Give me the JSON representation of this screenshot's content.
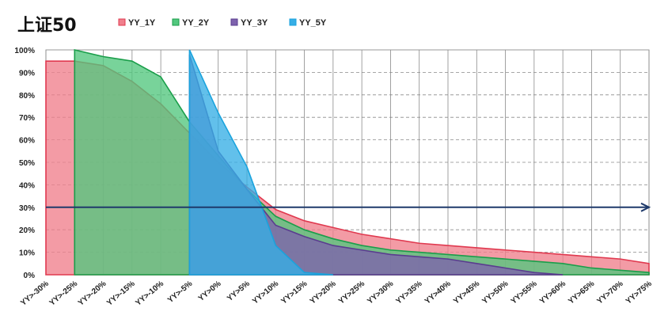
{
  "chart_data": {
    "type": "area",
    "title": "上证50",
    "categories": [
      "YY>-30%",
      "YY>-25%",
      "YY>-20%",
      "YY>-15%",
      "YY>-10%",
      "YY>-5%",
      "YY>0%",
      "YY>5%",
      "YY>10%",
      "YY>15%",
      "YY>20%",
      "YY>25%",
      "YY>30%",
      "YY>35%",
      "YY>40%",
      "YY>45%",
      "YY>50%",
      "YY>55%",
      "YY>60%",
      "YY>65%",
      "YY>70%",
      "YY>75%"
    ],
    "series": [
      {
        "name": "YY_1Y",
        "color": "#f07f8c",
        "stroke": "#e0394f",
        "values": [
          95,
          95,
          93,
          86,
          76,
          63,
          50,
          39,
          29,
          24,
          21,
          18,
          16,
          14,
          13,
          12,
          11,
          10,
          9,
          8,
          7,
          5
        ]
      },
      {
        "name": "YY_2Y",
        "color": "#52c77e",
        "stroke": "#1a9e4a",
        "values": [
          null,
          100,
          97,
          95,
          88,
          68,
          53,
          38,
          26,
          20,
          16,
          13,
          11,
          10,
          9,
          8,
          7,
          6,
          5,
          3,
          2,
          1
        ]
      },
      {
        "name": "YY_3Y",
        "color": "#7e62ad",
        "stroke": "#5a3c8f",
        "values": [
          null,
          null,
          null,
          null,
          null,
          98,
          55,
          38,
          22,
          17,
          13,
          11,
          9,
          8,
          7,
          5,
          3,
          1,
          0,
          null,
          null,
          null
        ]
      },
      {
        "name": "YY_5Y",
        "color": "#36aee6",
        "stroke": "#1aa3dd",
        "values": [
          null,
          null,
          null,
          null,
          null,
          100,
          72,
          48,
          13,
          1,
          0,
          null,
          null,
          null,
          null,
          null,
          null,
          null,
          null,
          null,
          null,
          null
        ]
      }
    ],
    "ylim": [
      0,
      100
    ],
    "yticks": [
      "0%",
      "10%",
      "20%",
      "30%",
      "40%",
      "50%",
      "60%",
      "70%",
      "80%",
      "90%",
      "100%"
    ],
    "reference_line": {
      "y": 30,
      "color": "#1f3a6b"
    },
    "grid": "dashed",
    "legend": "top"
  }
}
